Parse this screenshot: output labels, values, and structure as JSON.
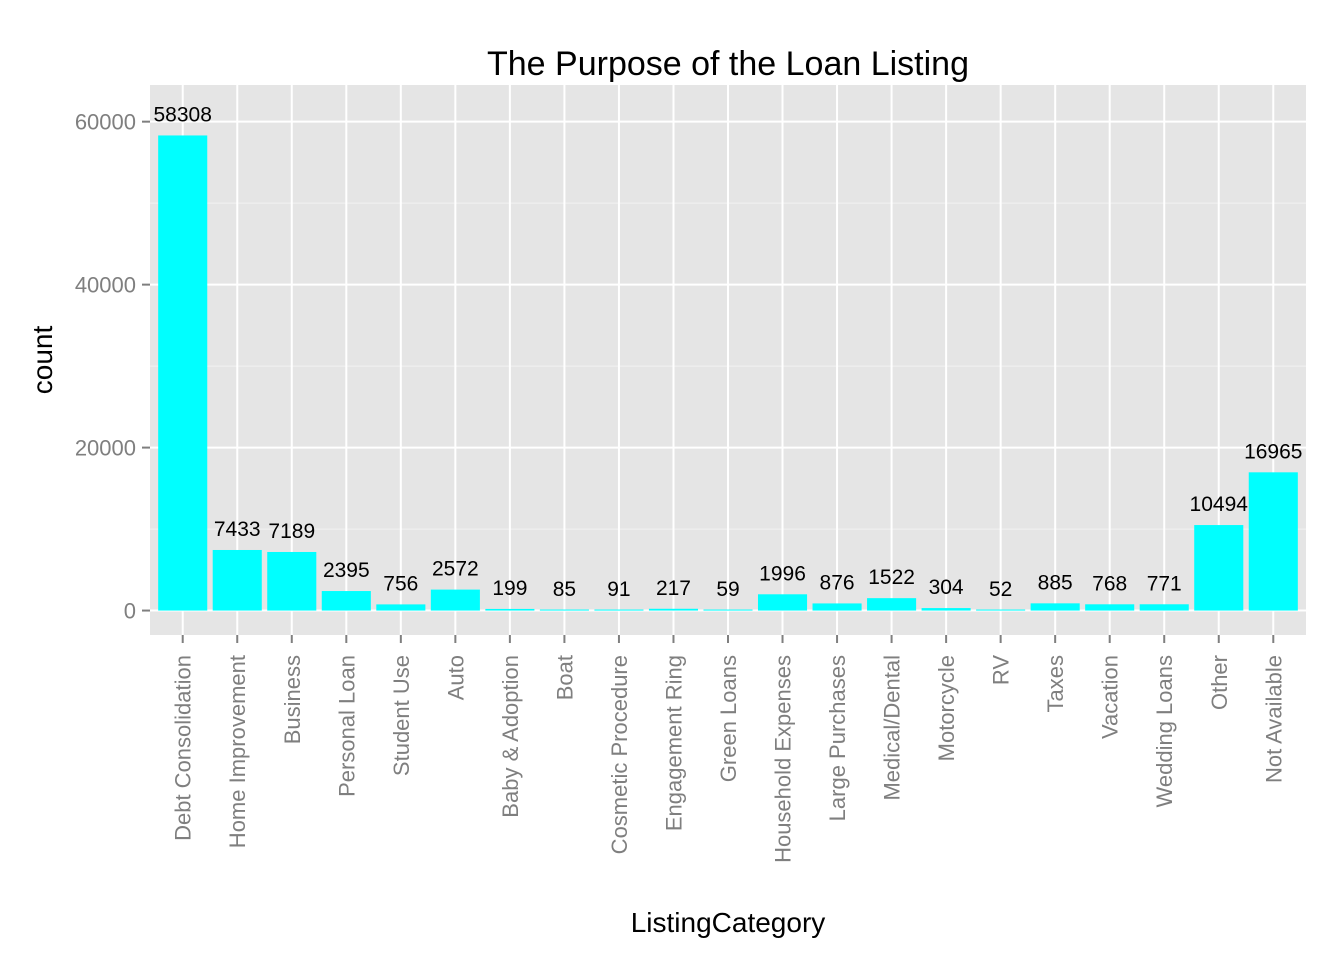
{
  "chart_data": {
    "type": "bar",
    "title": "The Purpose of the Loan Listing",
    "xlabel": "ListingCategory",
    "ylabel": "count",
    "ylim": [
      -3000,
      64500
    ],
    "yticks": [
      0,
      20000,
      40000,
      60000
    ],
    "ytick_labels": [
      "0",
      "20000",
      "40000",
      "60000"
    ],
    "grid": true,
    "legend": "none",
    "colors": {
      "bar": "#00ffff",
      "panel": "#e5e5e5",
      "grid_major": "#ffffff",
      "grid_minor": "#f2f2f2",
      "tick_label": "#7f7f7f"
    },
    "categories": [
      "Debt Consolidation",
      "Home Improvement",
      "Business",
      "Personal Loan",
      "Student Use",
      "Auto",
      "Baby & Adoption",
      "Boat",
      "Cosmetic Procedure",
      "Engagement Ring",
      "Green Loans",
      "Household Expenses",
      "Large Purchases",
      "Medical/Dental",
      "Motorcycle",
      "RV",
      "Taxes",
      "Vacation",
      "Wedding Loans",
      "Other",
      "Not Available"
    ],
    "values": [
      58308,
      7433,
      7189,
      2395,
      756,
      2572,
      199,
      85,
      91,
      217,
      59,
      1996,
      876,
      1522,
      304,
      52,
      885,
      768,
      771,
      10494,
      16965
    ],
    "value_labels": [
      "58308",
      "7433",
      "7189",
      "2395",
      "756",
      "2572",
      "199",
      "85",
      "91",
      "217",
      "59",
      "1996",
      "876",
      "1522",
      "304",
      "52",
      "885",
      "768",
      "771",
      "10494",
      "16965"
    ]
  }
}
